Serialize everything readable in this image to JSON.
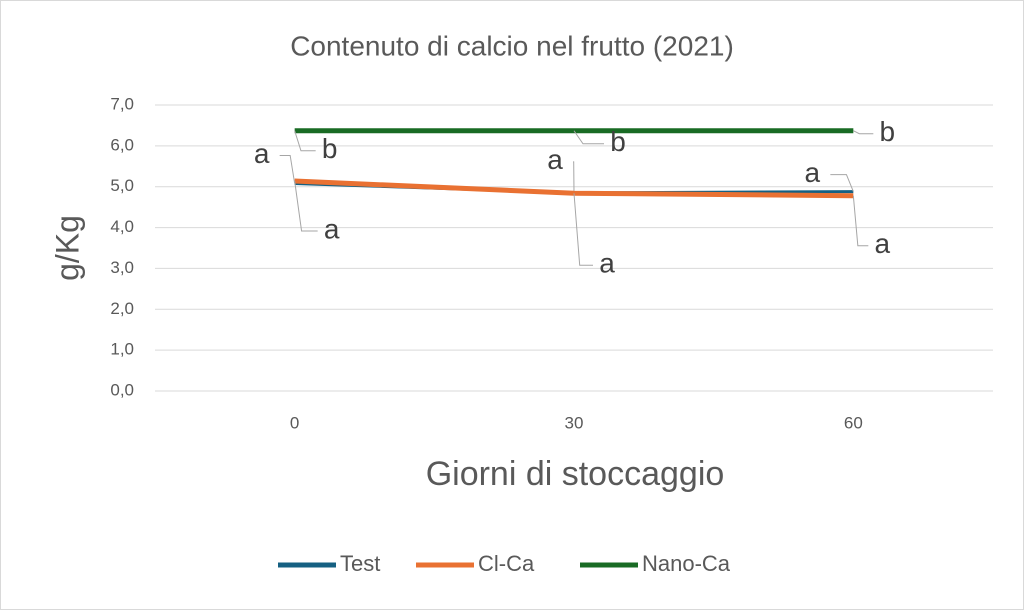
{
  "chart_data": {
    "type": "line",
    "title": "Contenuto di calcio nel frutto (2021)",
    "x_label": "Giorni di stoccaggio",
    "y_label": "g/Kg",
    "categories": [
      "0",
      "30",
      "60"
    ],
    "series": [
      {
        "name": "Test",
        "color": "#156082",
        "values": [
          5.08,
          4.85,
          4.88
        ],
        "letters": [
          "a",
          "a",
          "a"
        ]
      },
      {
        "name": "Cl-Ca",
        "color": "#e97132",
        "values": [
          5.14,
          4.84,
          4.78
        ],
        "letters": [
          "a",
          "a",
          "a"
        ]
      },
      {
        "name": "Nano-Ca",
        "color": "#196b24",
        "values": [
          6.37,
          6.37,
          6.37
        ],
        "letters": [
          "b",
          "b",
          "b"
        ]
      }
    ],
    "ylim": [
      0,
      7
    ],
    "yticks": [
      {
        "value": 0,
        "label": "0,0"
      },
      {
        "value": 1,
        "label": "1,0"
      },
      {
        "value": 2,
        "label": "2,0"
      },
      {
        "value": 3,
        "label": "3,0"
      },
      {
        "value": 4,
        "label": "4,0"
      },
      {
        "value": 5,
        "label": "5,0"
      },
      {
        "value": 6,
        "label": "6,0"
      },
      {
        "value": 7,
        "label": "7,0"
      }
    ],
    "grid": true,
    "legend": "bottom"
  }
}
